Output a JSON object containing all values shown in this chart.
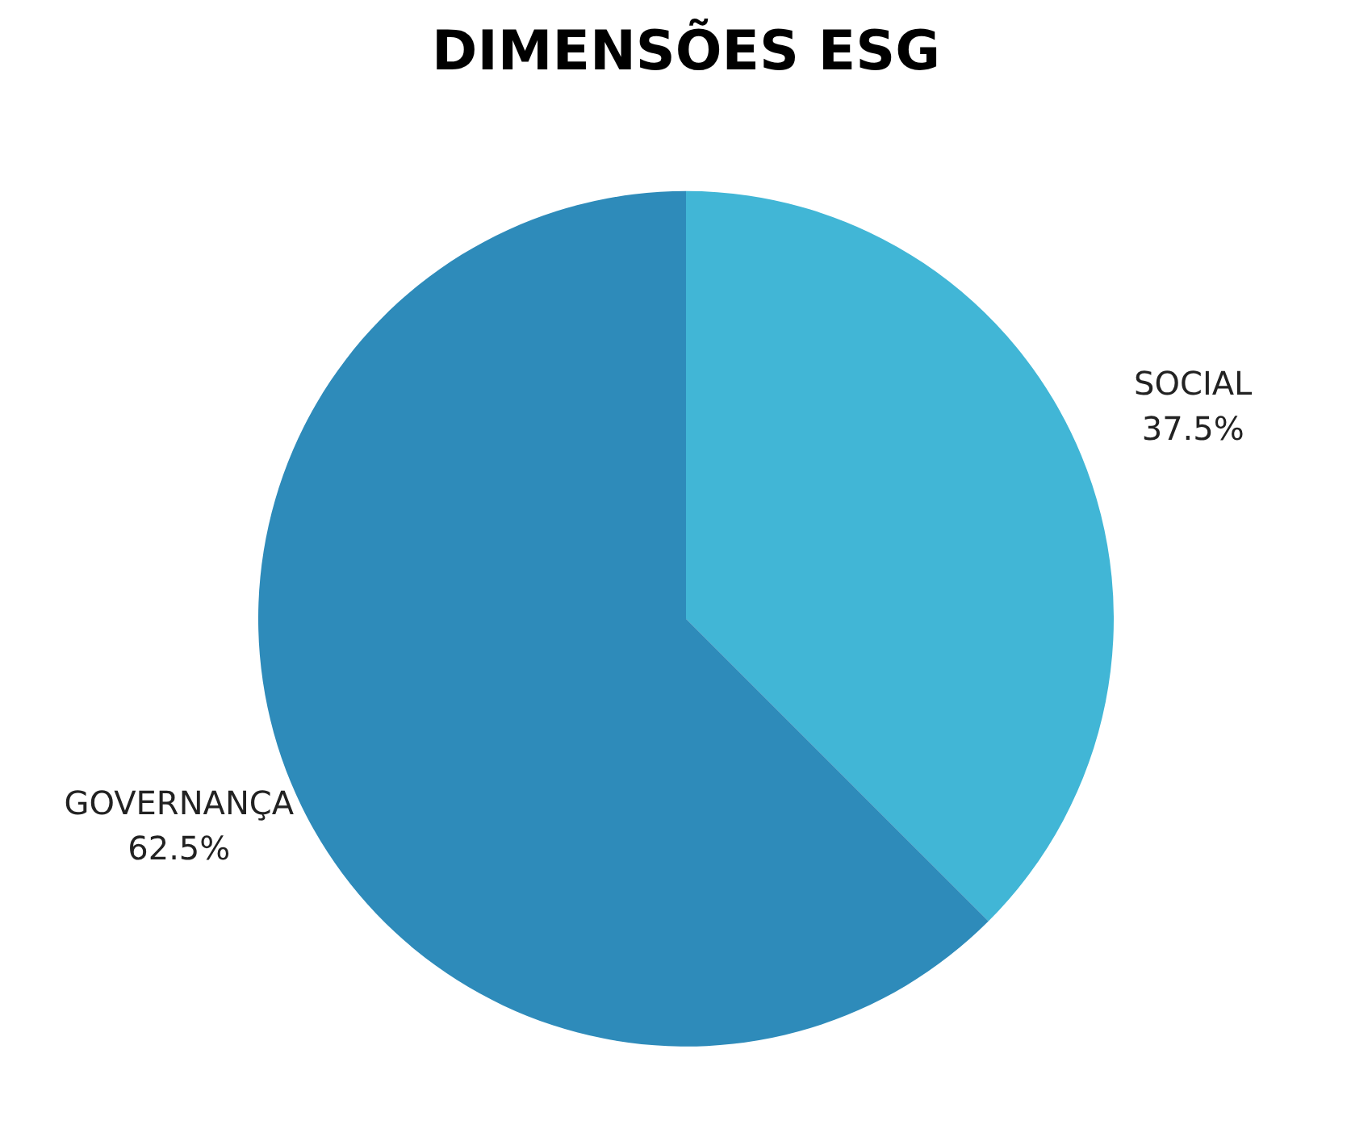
{
  "chart_data": {
    "type": "pie",
    "title": "DIMENSÕES ESG",
    "categories": [
      "SOCIAL",
      "GOVERNANÇA"
    ],
    "values": [
      37.5,
      62.5
    ],
    "colors": [
      "#41b6d6",
      "#2e8bba"
    ],
    "value_labels": [
      "37.5%",
      "62.5%"
    ],
    "legend": false
  }
}
